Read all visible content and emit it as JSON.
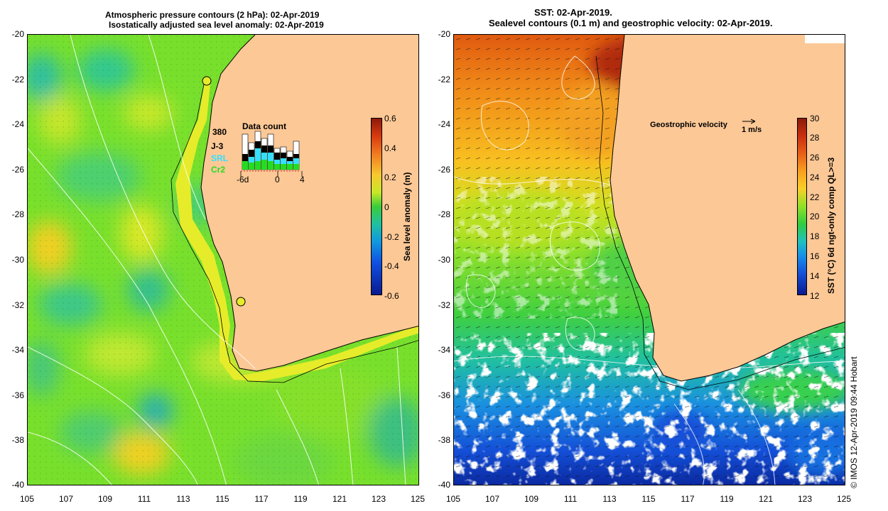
{
  "left_panel": {
    "title_line1": "Atmospheric pressure contours (2 hPa): 02-Apr-2019",
    "title_line2": "Isostatically adjusted sea level anomaly: 02-Apr-2019",
    "colorbar": {
      "label": "Sea level anomaly (m)",
      "ticks": [
        "0.6",
        "0.4",
        "0.2",
        "0",
        "-0.2",
        "-0.4",
        "-0.6"
      ]
    },
    "data_count": {
      "title": "Data count",
      "max_label": "380",
      "series": [
        {
          "name": "J-3",
          "color": "#000000"
        },
        {
          "name": "SRL",
          "color": "#33e0ff"
        },
        {
          "name": "Cr2",
          "color": "#22dd22"
        }
      ],
      "axis_labels": [
        "-6d",
        "0",
        "4"
      ]
    }
  },
  "right_panel": {
    "title_line1": "SST: 02-Apr-2019.",
    "title_line2": "Sealevel contours (0.1 m) and geostrophic velocity: 02-Apr-2019.",
    "velocity_legend": "Geostrophic velocity",
    "velocity_scale": "1 m/s",
    "colorbar": {
      "label": "SST (°C) 6d ngt-only comp QL>=3",
      "ticks": [
        "30",
        "28",
        "26",
        "24",
        "22",
        "20",
        "18",
        "16",
        "14",
        "12"
      ]
    }
  },
  "axes": {
    "lat_ticks": [
      "-20",
      "-22",
      "-24",
      "-26",
      "-28",
      "-30",
      "-32",
      "-34",
      "-36",
      "-38",
      "-40"
    ],
    "lon_ticks": [
      "105",
      "107",
      "109",
      "111",
      "113",
      "115",
      "117",
      "119",
      "121",
      "123",
      "125"
    ]
  },
  "credit": "© IMOS 12-Apr-2019 09:44 Hobart",
  "colors": {
    "land": "#fcc896",
    "ocean_base": "#7fe82c",
    "coastline": "#000000",
    "contour": "#ffffff"
  }
}
